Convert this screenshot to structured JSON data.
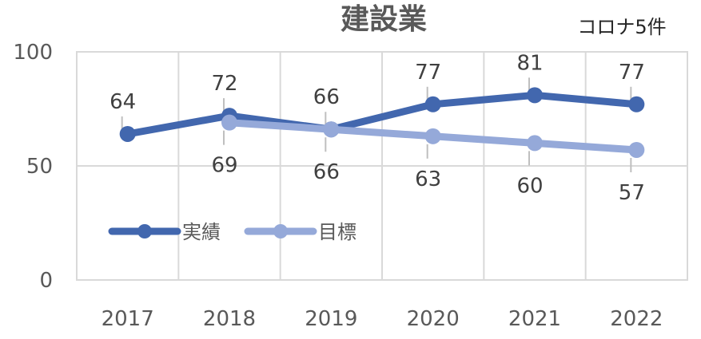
{
  "chart_data": {
    "type": "line",
    "title": "建設業",
    "annotation": "コロナ5件",
    "categories": [
      "2017",
      "2018",
      "2019",
      "2020",
      "2021",
      "2022"
    ],
    "ylim": [
      0,
      100
    ],
    "yticks": [
      0,
      50,
      100
    ],
    "grid": true,
    "legend_position": "inside-lower-left",
    "series": [
      {
        "name": "実績",
        "color": "#4267ae",
        "values": [
          64,
          72,
          66,
          77,
          81,
          77
        ]
      },
      {
        "name": "目標",
        "color": "#95a9d9",
        "values": [
          null,
          69,
          66,
          63,
          60,
          57
        ]
      }
    ]
  }
}
